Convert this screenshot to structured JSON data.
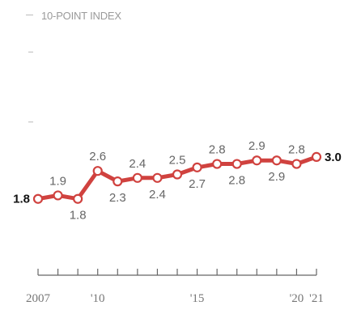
{
  "chart_data": {
    "type": "line",
    "unit_label": "10-POINT INDEX",
    "x": [
      2007,
      2008,
      2009,
      2010,
      2011,
      2012,
      2013,
      2014,
      2015,
      2016,
      2017,
      2018,
      2019,
      2020,
      2021
    ],
    "values": [
      1.8,
      1.9,
      1.8,
      2.6,
      2.3,
      2.4,
      2.4,
      2.5,
      2.7,
      2.8,
      2.8,
      2.9,
      2.9,
      2.8,
      3.0
    ],
    "point_labels": [
      "1.8",
      "1.9",
      "1.8",
      "2.6",
      "2.3",
      "2.4",
      "2.4",
      "2.5",
      "2.7",
      "2.8",
      "2.8",
      "2.9",
      "2.9",
      "2.8",
      "3.0"
    ],
    "label_position": [
      "left",
      "above",
      "below",
      "above",
      "below",
      "above",
      "below",
      "above",
      "below",
      "above",
      "below",
      "above",
      "below",
      "above",
      "right"
    ],
    "bold_labels": [
      0,
      14
    ],
    "tick_labels": [
      {
        "x": 2007,
        "label": "2007"
      },
      {
        "x": 2010,
        "label": "'10"
      },
      {
        "x": 2015,
        "label": "'15"
      },
      {
        "x": 2020,
        "label": "'20"
      },
      {
        "x": 2021,
        "label": "'21"
      }
    ],
    "ylim": [
      0,
      10
    ],
    "y_gridline_values": [
      4,
      6,
      8,
      10
    ],
    "line_color": "#d0423f",
    "marker_fill": "#ffffff",
    "grid": false,
    "legend": "none"
  }
}
